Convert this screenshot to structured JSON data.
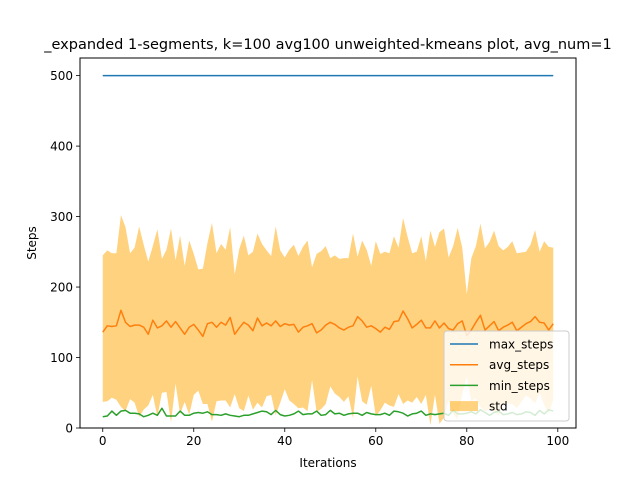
{
  "chart_data": {
    "type": "line",
    "title": "_expanded 1-segments, k=100 avg100 unweighted-kmeans plot, avg_num=1",
    "xlabel": "Iterations",
    "ylabel": "Steps",
    "xlim": [
      -5,
      104
    ],
    "ylim": [
      0,
      525
    ],
    "xticks": [
      0,
      20,
      40,
      60,
      80,
      100
    ],
    "yticks": [
      0,
      100,
      200,
      300,
      400,
      500
    ],
    "legend_position": "lower-right",
    "x": [
      0,
      1,
      2,
      3,
      4,
      5,
      6,
      7,
      8,
      9,
      10,
      11,
      12,
      13,
      14,
      15,
      16,
      17,
      18,
      19,
      20,
      21,
      22,
      23,
      24,
      25,
      26,
      27,
      28,
      29,
      30,
      31,
      32,
      33,
      34,
      35,
      36,
      37,
      38,
      39,
      40,
      41,
      42,
      43,
      44,
      45,
      46,
      47,
      48,
      49,
      50,
      51,
      52,
      53,
      54,
      55,
      56,
      57,
      58,
      59,
      60,
      61,
      62,
      63,
      64,
      65,
      66,
      67,
      68,
      69,
      70,
      71,
      72,
      73,
      74,
      75,
      76,
      77,
      78,
      79,
      80,
      81,
      82,
      83,
      84,
      85,
      86,
      87,
      88,
      89,
      90,
      91,
      92,
      93,
      94,
      95,
      96,
      97,
      98,
      99
    ],
    "series": [
      {
        "name": "max_steps",
        "color": "#1f77b4",
        "values": [
          500,
          500,
          500,
          500,
          500,
          500,
          500,
          500,
          500,
          500,
          500,
          500,
          500,
          500,
          500,
          500,
          500,
          500,
          500,
          500,
          500,
          500,
          500,
          500,
          500,
          500,
          500,
          500,
          500,
          500,
          500,
          500,
          500,
          500,
          500,
          500,
          500,
          500,
          500,
          500,
          500,
          500,
          500,
          500,
          500,
          500,
          500,
          500,
          500,
          500,
          500,
          500,
          500,
          500,
          500,
          500,
          500,
          500,
          500,
          500,
          500,
          500,
          500,
          500,
          500,
          500,
          500,
          500,
          500,
          500,
          500,
          500,
          500,
          500,
          500,
          500,
          500,
          500,
          500,
          500,
          500,
          500,
          500,
          500,
          500,
          500,
          500,
          500,
          500,
          500,
          500,
          500,
          500,
          500,
          500,
          500,
          500,
          500,
          500,
          500
        ]
      },
      {
        "name": "avg_steps",
        "color": "#ff7f0e",
        "values": [
          136,
          145,
          144,
          145,
          167,
          150,
          144,
          146,
          146,
          143,
          133,
          153,
          142,
          145,
          152,
          143,
          151,
          142,
          133,
          143,
          147,
          139,
          130,
          148,
          150,
          143,
          150,
          146,
          157,
          133,
          142,
          150,
          146,
          138,
          156,
          145,
          149,
          145,
          152,
          144,
          148,
          146,
          147,
          136,
          143,
          145,
          148,
          135,
          139,
          146,
          150,
          147,
          142,
          139,
          143,
          145,
          158,
          152,
          143,
          145,
          141,
          136,
          143,
          140,
          151,
          152,
          166,
          155,
          142,
          147,
          153,
          142,
          142,
          152,
          142,
          149,
          141,
          139,
          148,
          152,
          131,
          139,
          150,
          160,
          139,
          145,
          151,
          138,
          143,
          146,
          150,
          138,
          143,
          148,
          151,
          158,
          150,
          149,
          139,
          148
        ]
      },
      {
        "name": "min_steps",
        "color": "#2ca02c",
        "values": [
          16,
          17,
          24,
          18,
          24,
          25,
          21,
          21,
          20,
          16,
          18,
          21,
          18,
          28,
          17,
          17,
          17,
          24,
          18,
          18,
          21,
          22,
          21,
          23,
          19,
          19,
          18,
          20,
          18,
          17,
          16,
          18,
          18,
          20,
          22,
          24,
          23,
          19,
          25,
          19,
          17,
          18,
          20,
          24,
          19,
          20,
          20,
          24,
          18,
          19,
          25,
          20,
          21,
          18,
          20,
          21,
          21,
          18,
          22,
          20,
          19,
          19,
          21,
          18,
          24,
          23,
          21,
          17,
          20,
          21,
          24,
          18,
          20,
          19,
          20,
          21,
          18,
          25,
          20,
          20,
          21,
          23,
          20,
          26,
          22,
          18,
          22,
          24,
          19,
          20,
          22,
          19,
          20,
          23,
          22,
          18,
          25,
          20,
          26,
          24
        ]
      },
      {
        "name": "std",
        "color": "#ffa500",
        "upper": [
          245,
          252,
          248,
          248,
          302,
          285,
          248,
          256,
          286,
          260,
          236,
          258,
          282,
          240,
          253,
          283,
          238,
          273,
          230,
          266,
          247,
          225,
          226,
          262,
          291,
          248,
          261,
          253,
          285,
          218,
          254,
          273,
          245,
          250,
          276,
          261,
          252,
          244,
          286,
          252,
          242,
          253,
          260,
          244,
          257,
          266,
          228,
          247,
          251,
          258,
          241,
          245,
          240,
          241,
          241,
          276,
          243,
          266,
          253,
          230,
          265,
          247,
          250,
          248,
          272,
          256,
          298,
          271,
          248,
          250,
          272,
          237,
          280,
          257,
          278,
          283,
          242,
          258,
          284,
          256,
          190,
          241,
          258,
          290,
          255,
          264,
          280,
          258,
          252,
          257,
          265,
          248,
          249,
          250,
          260,
          281,
          250,
          265,
          257,
          256
        ],
        "lower": [
          37,
          38,
          43,
          40,
          30,
          24,
          41,
          36,
          16,
          26,
          32,
          47,
          16,
          50,
          51,
          8,
          63,
          20,
          37,
          19,
          47,
          53,
          34,
          34,
          9,
          38,
          39,
          39,
          29,
          48,
          28,
          24,
          46,
          26,
          36,
          29,
          45,
          47,
          18,
          36,
          55,
          39,
          34,
          28,
          29,
          24,
          68,
          23,
          27,
          34,
          59,
          49,
          44,
          37,
          45,
          14,
          73,
          38,
          33,
          60,
          17,
          25,
          36,
          32,
          30,
          48,
          34,
          39,
          36,
          44,
          34,
          47,
          4,
          47,
          6,
          15,
          40,
          20,
          12,
          48,
          73,
          38,
          42,
          30,
          24,
          27,
          23,
          18,
          34,
          35,
          34,
          28,
          37,
          46,
          42,
          35,
          50,
          33,
          21,
          40
        ]
      }
    ]
  }
}
